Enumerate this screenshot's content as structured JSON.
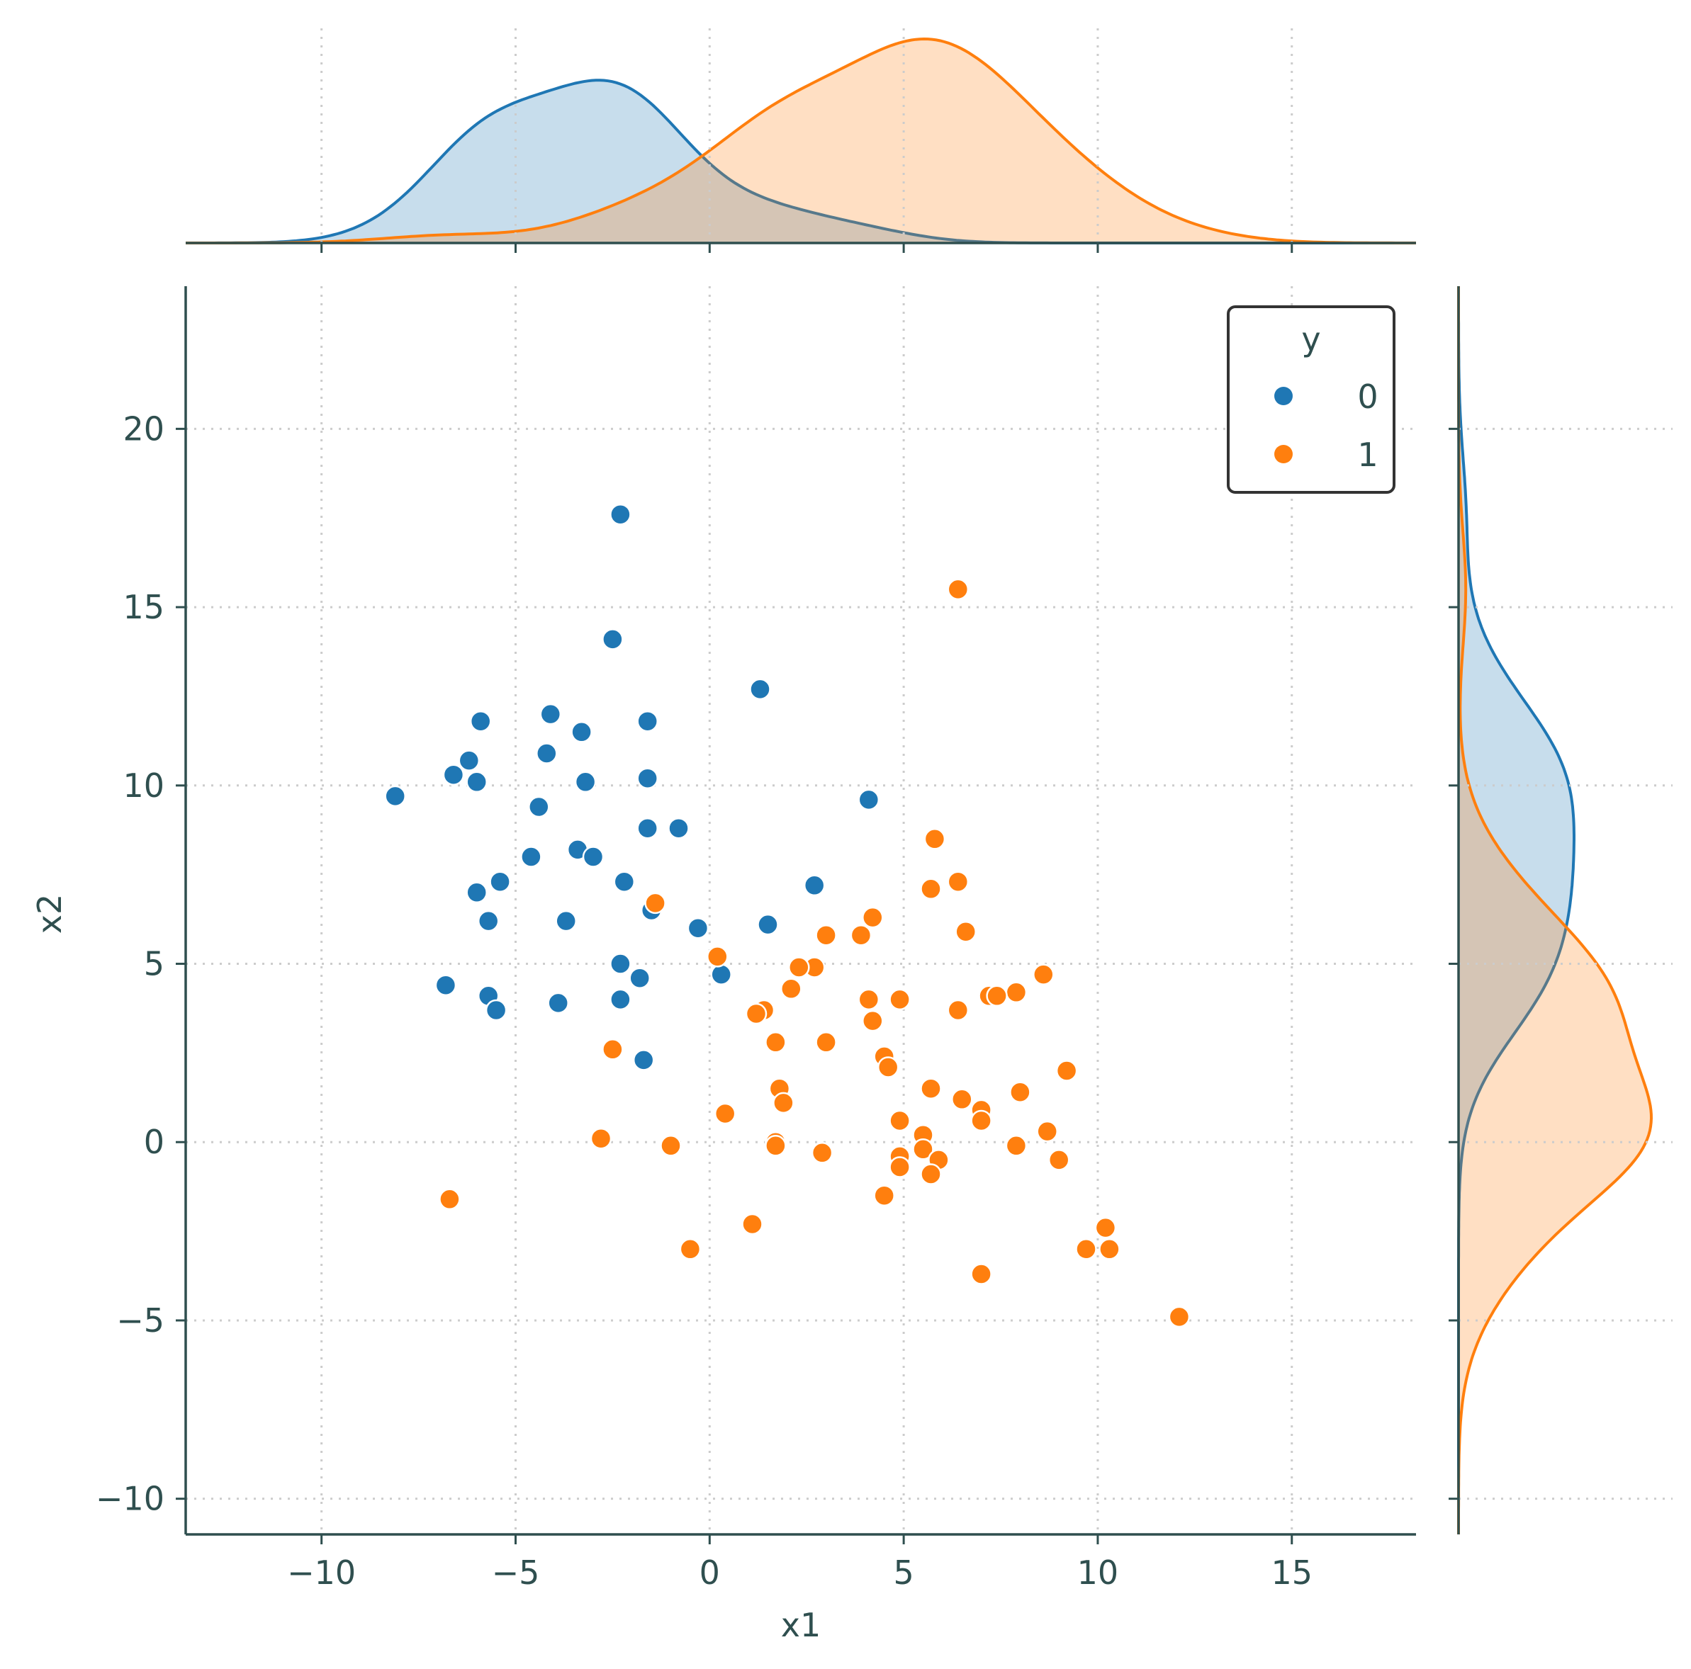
{
  "chart_data": {
    "type": "scatter",
    "subtype": "jointplot-with-kde-marginals",
    "xlabel": "x1",
    "ylabel": "x2",
    "xlim": [
      -13.5,
      18.2
    ],
    "ylim": [
      -11,
      24
    ],
    "xticks": [
      -10,
      -5,
      0,
      5,
      10,
      15
    ],
    "yticks": [
      -10,
      -5,
      0,
      5,
      10,
      15,
      20
    ],
    "xtick_labels": [
      "−10",
      "−5",
      "0",
      "5",
      "10",
      "15"
    ],
    "ytick_labels": [
      "−10",
      "−5",
      "0",
      "5",
      "10",
      "15",
      "20"
    ],
    "grid": true,
    "legend": {
      "title": "y",
      "position": "top-right"
    },
    "series": [
      {
        "name": "0",
        "color": "#1f77b4",
        "points": [
          [
            -2.3,
            17.6
          ],
          [
            -2.5,
            14.1
          ],
          [
            1.3,
            12.7
          ],
          [
            -5.9,
            11.8
          ],
          [
            -4.1,
            12.0
          ],
          [
            -1.6,
            11.8
          ],
          [
            -3.3,
            11.5
          ],
          [
            -4.2,
            10.9
          ],
          [
            -6.2,
            10.7
          ],
          [
            -6.6,
            10.3
          ],
          [
            -6.0,
            10.1
          ],
          [
            -3.2,
            10.1
          ],
          [
            -1.6,
            10.2
          ],
          [
            -8.1,
            9.7
          ],
          [
            -4.4,
            9.4
          ],
          [
            4.1,
            9.6
          ],
          [
            -1.6,
            8.8
          ],
          [
            -0.8,
            8.8
          ],
          [
            -3.4,
            8.2
          ],
          [
            -3.0,
            8.0
          ],
          [
            -4.6,
            8.0
          ],
          [
            -5.4,
            7.3
          ],
          [
            -6.0,
            7.0
          ],
          [
            -2.2,
            7.3
          ],
          [
            2.7,
            7.2
          ],
          [
            -1.5,
            6.5
          ],
          [
            -5.7,
            6.2
          ],
          [
            -3.7,
            6.2
          ],
          [
            1.5,
            6.1
          ],
          [
            -0.3,
            6.0
          ],
          [
            -2.3,
            5.0
          ],
          [
            0.3,
            4.7
          ],
          [
            -1.8,
            4.6
          ],
          [
            -6.8,
            4.4
          ],
          [
            -5.7,
            4.1
          ],
          [
            -2.3,
            4.0
          ],
          [
            -3.9,
            3.9
          ],
          [
            -5.5,
            3.7
          ],
          [
            -1.7,
            2.3
          ]
        ]
      },
      {
        "name": "1",
        "color": "#ff7f0e",
        "points": [
          [
            6.4,
            15.5
          ],
          [
            5.8,
            8.5
          ],
          [
            6.4,
            7.3
          ],
          [
            5.7,
            7.1
          ],
          [
            -1.4,
            6.7
          ],
          [
            4.2,
            6.3
          ],
          [
            6.6,
            5.9
          ],
          [
            3.0,
            5.8
          ],
          [
            3.9,
            5.8
          ],
          [
            0.2,
            5.2
          ],
          [
            2.7,
            4.9
          ],
          [
            2.3,
            4.9
          ],
          [
            8.6,
            4.7
          ],
          [
            2.1,
            4.3
          ],
          [
            7.9,
            4.2
          ],
          [
            7.2,
            4.1
          ],
          [
            7.4,
            4.1
          ],
          [
            4.1,
            4.0
          ],
          [
            4.9,
            4.0
          ],
          [
            6.4,
            3.7
          ],
          [
            1.4,
            3.7
          ],
          [
            1.2,
            3.6
          ],
          [
            4.2,
            3.4
          ],
          [
            1.7,
            2.8
          ],
          [
            3.0,
            2.8
          ],
          [
            -2.5,
            2.6
          ],
          [
            4.5,
            2.4
          ],
          [
            4.6,
            2.1
          ],
          [
            9.2,
            2.0
          ],
          [
            5.7,
            1.5
          ],
          [
            1.8,
            1.5
          ],
          [
            8.0,
            1.4
          ],
          [
            6.5,
            1.2
          ],
          [
            1.9,
            1.1
          ],
          [
            7.0,
            0.9
          ],
          [
            7.0,
            0.6
          ],
          [
            0.4,
            0.8
          ],
          [
            4.9,
            0.6
          ],
          [
            8.7,
            0.3
          ],
          [
            5.5,
            0.2
          ],
          [
            -2.8,
            0.1
          ],
          [
            1.7,
            0.0
          ],
          [
            7.9,
            -0.1
          ],
          [
            -1.0,
            -0.1
          ],
          [
            1.7,
            -0.1
          ],
          [
            5.5,
            -0.2
          ],
          [
            2.9,
            -0.3
          ],
          [
            4.9,
            -0.4
          ],
          [
            5.9,
            -0.5
          ],
          [
            9.0,
            -0.5
          ],
          [
            4.9,
            -0.7
          ],
          [
            5.7,
            -0.9
          ],
          [
            4.5,
            -1.5
          ],
          [
            -6.7,
            -1.6
          ],
          [
            1.1,
            -2.3
          ],
          [
            10.2,
            -2.4
          ],
          [
            -0.5,
            -3.0
          ],
          [
            9.7,
            -3.0
          ],
          [
            10.3,
            -3.0
          ],
          [
            7.0,
            -3.7
          ],
          [
            12.1,
            -4.9
          ]
        ]
      }
    ]
  }
}
